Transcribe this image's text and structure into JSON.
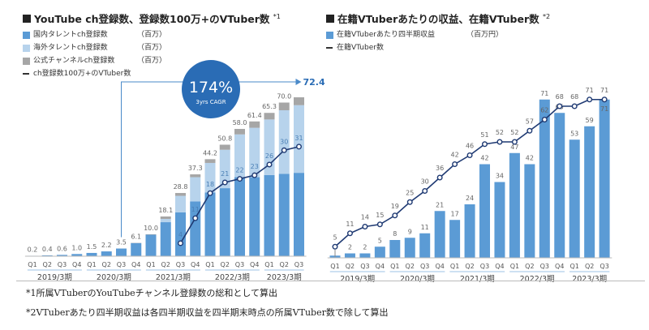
{
  "left": {
    "title": "YouTube ch登録数、登録数100万+のVTuber数",
    "title_note": "*1",
    "legend": [
      {
        "label": "国内タレントch登録数",
        "unit": "（百万）",
        "color": "#5b9bd5"
      },
      {
        "label": "海外タレントch登録数",
        "unit": "（百万）",
        "color": "#b7d3ec"
      },
      {
        "label": "公式チャンネルch登録数",
        "unit": "（百万）",
        "color": "#a6a6a6"
      },
      {
        "label": "ch登録数100万+のVTuber数",
        "unit": "",
        "color": "#1f3a73"
      }
    ],
    "cagr_value": "174%",
    "cagr_label": "3yrs CAGR",
    "callout_value": "72.4"
  },
  "right": {
    "title": "在籍VTuberあたりの収益、在籍VTuber数",
    "title_note": "*2",
    "legend": [
      {
        "label": "在籍VTuberあたり四半期収益",
        "unit": "（百万円）",
        "color": "#5b9bd5"
      },
      {
        "label": "在籍VTuber数",
        "unit": "",
        "color": "#1f3a73"
      }
    ]
  },
  "notes": [
    "*1所属VTuberのYouTubeチャンネル登録数の総和として算出",
    "*2VTuberあたり四半期収益は各四半期収益を四半期末時点の所属VTuber数で除して算出"
  ],
  "chart_data": [
    {
      "type": "bar",
      "stacked": true,
      "title": "YouTube ch登録数、登録数100万+のVTuber数",
      "categories": [
        "Q1",
        "Q2",
        "Q3",
        "Q4",
        "Q1",
        "Q2",
        "Q3",
        "Q4",
        "Q1",
        "Q2",
        "Q3",
        "Q4",
        "Q1",
        "Q2",
        "Q3",
        "Q4",
        "Q1",
        "Q2",
        "Q3"
      ],
      "groups": [
        {
          "label": "2019/3期",
          "count": 4
        },
        {
          "label": "2020/3期",
          "count": 4
        },
        {
          "label": "2021/3期",
          "count": 4
        },
        {
          "label": "2022/3期",
          "count": 4
        },
        {
          "label": "2023/3期",
          "count": 3
        }
      ],
      "totals": [
        "0.2",
        "0.4",
        "0.6",
        "1.0",
        "1.5",
        "2.2",
        "3.5",
        "6.1",
        "10.0",
        "18.1",
        "28.8",
        "37.3",
        "44.2",
        "50.8",
        "58.0",
        "61.4",
        "65.3",
        "70.0",
        "72.4"
      ],
      "series": [
        {
          "name": "国内タレントch登録数",
          "values": [
            0.2,
            0.4,
            0.6,
            1.0,
            1.5,
            2.2,
            3.5,
            6.0,
            9.8,
            15.5,
            20.0,
            25.0,
            29.0,
            31.0,
            36.0,
            36.0,
            37.0,
            37.5,
            38.0
          ]
        },
        {
          "name": "海外タレントch登録数",
          "values": [
            0,
            0,
            0,
            0,
            0,
            0,
            0,
            0,
            0,
            1.5,
            7.5,
            11.0,
            13.5,
            17.5,
            19.5,
            22.5,
            25.3,
            29.0,
            30.8
          ]
        },
        {
          "name": "公式チャンネルch登録数",
          "values": [
            0,
            0,
            0,
            0,
            0,
            0,
            0,
            0.1,
            0.2,
            1.1,
            1.3,
            1.3,
            1.7,
            2.3,
            2.5,
            2.9,
            3.0,
            3.5,
            3.6
          ]
        }
      ],
      "line": {
        "name": "ch登録数100万+のVTuber数",
        "start_index": 10,
        "values": [
          4,
          11,
          18,
          21,
          22,
          23,
          26,
          30,
          31
        ]
      },
      "ylim": [
        0,
        75
      ]
    },
    {
      "type": "bar",
      "title": "在籍VTuberあたりの収益、在籍VTuber数",
      "categories": [
        "Q1",
        "Q2",
        "Q3",
        "Q4",
        "Q1",
        "Q2",
        "Q3",
        "Q4",
        "Q1",
        "Q2",
        "Q3",
        "Q4",
        "Q1",
        "Q2",
        "Q3",
        "Q4",
        "Q1",
        "Q2",
        "Q3"
      ],
      "groups": [
        {
          "label": "2019/3期",
          "count": 4
        },
        {
          "label": "2020/3期",
          "count": 4
        },
        {
          "label": "2021/3期",
          "count": 4
        },
        {
          "label": "2022/3期",
          "count": 4
        },
        {
          "label": "2023/3期",
          "count": 3
        }
      ],
      "series": [
        {
          "name": "在籍VTuberあたり四半期収益",
          "values": [
            1,
            2,
            2,
            5,
            8,
            9,
            11,
            21,
            17,
            24,
            42,
            34,
            47,
            42,
            71,
            65,
            53,
            59,
            71
          ]
        }
      ],
      "bar_labels": [
        "1",
        "2",
        "2",
        "5",
        "8",
        "9",
        "11",
        "21",
        "17",
        "24",
        "42",
        "34",
        "47",
        "42",
        "71",
        "65",
        "53",
        "59",
        "71"
      ],
      "line": {
        "name": "在籍VTuber数",
        "start_index": 0,
        "values": [
          5,
          11,
          14,
          15,
          19,
          25,
          30,
          36,
          42,
          46,
          51,
          52,
          52,
          57,
          62,
          68,
          68,
          71,
          71
        ]
      },
      "ylim": [
        0,
        75
      ]
    }
  ]
}
